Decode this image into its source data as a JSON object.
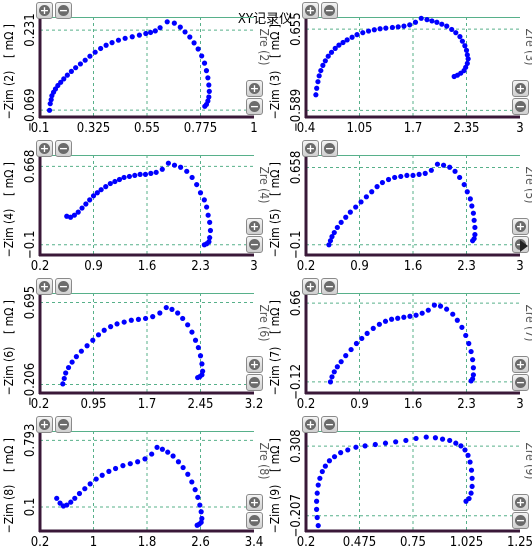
{
  "title": "XY记录仪",
  "colors": {
    "point": "#0000ff",
    "frame": "#3a1838",
    "grid": "#57b08a",
    "axis_text": "#000000"
  },
  "chart_data": [
    {
      "type": "scatter",
      "ylabel": "−Zim (2)",
      "yunit": "[ mΩ ]",
      "xlabel": "Zre (2)",
      "xlim": [
        0.1,
        1
      ],
      "xticks": [
        "0.1",
        "0.325",
        "0.55",
        "0.775",
        "1"
      ],
      "ylim": [
        -0.095,
        0.28
      ],
      "yticks": [
        "−0.069",
        "0.231"
      ],
      "ytick_values": [
        -0.069,
        0.231
      ],
      "points": [
        [
          0.14,
          -0.07
        ],
        [
          0.143,
          -0.045
        ],
        [
          0.147,
          -0.03
        ],
        [
          0.15,
          -0.015
        ],
        [
          0.157,
          -0.002
        ],
        [
          0.165,
          0.01
        ],
        [
          0.175,
          0.023
        ],
        [
          0.187,
          0.035
        ],
        [
          0.2,
          0.048
        ],
        [
          0.215,
          0.062
        ],
        [
          0.232,
          0.076
        ],
        [
          0.25,
          0.09
        ],
        [
          0.27,
          0.104
        ],
        [
          0.29,
          0.118
        ],
        [
          0.31,
          0.133
        ],
        [
          0.332,
          0.148
        ],
        [
          0.355,
          0.162
        ],
        [
          0.378,
          0.174
        ],
        [
          0.403,
          0.184
        ],
        [
          0.43,
          0.193
        ],
        [
          0.458,
          0.2
        ],
        [
          0.488,
          0.206
        ],
        [
          0.518,
          0.212
        ],
        [
          0.545,
          0.218
        ],
        [
          0.565,
          0.222
        ],
        [
          0.585,
          0.228
        ],
        [
          0.605,
          0.24
        ],
        [
          0.635,
          0.262
        ],
        [
          0.665,
          0.257
        ],
        [
          0.69,
          0.242
        ],
        [
          0.71,
          0.224
        ],
        [
          0.73,
          0.205
        ],
        [
          0.748,
          0.183
        ],
        [
          0.765,
          0.16
        ],
        [
          0.78,
          0.134
        ],
        [
          0.792,
          0.107
        ],
        [
          0.8,
          0.079
        ],
        [
          0.806,
          0.052
        ],
        [
          0.81,
          0.025
        ],
        [
          0.812,
          0.001
        ],
        [
          0.81,
          -0.02
        ],
        [
          0.806,
          -0.035
        ],
        [
          0.8,
          -0.048
        ],
        [
          0.793,
          -0.055
        ]
      ]
    },
    {
      "type": "scatter",
      "ylabel": "−Zim (3)",
      "yunit": "[ mΩ ]",
      "xlabel": "Zre (3)",
      "xlim": [
        0.4,
        3
      ],
      "xticks": [
        "0.4",
        "1.05",
        "1.7",
        "2.35",
        "3"
      ],
      "ylim": [
        -0.69,
        0.84
      ],
      "yticks": [
        "−0.589",
        "0.655"
      ],
      "ytick_values": [
        -0.589,
        0.655
      ],
      "points": [
        [
          0.52,
          -0.35
        ],
        [
          0.53,
          -0.25
        ],
        [
          0.545,
          -0.15
        ],
        [
          0.56,
          -0.06
        ],
        [
          0.58,
          0.02
        ],
        [
          0.605,
          0.1
        ],
        [
          0.635,
          0.17
        ],
        [
          0.67,
          0.24
        ],
        [
          0.71,
          0.3
        ],
        [
          0.755,
          0.36
        ],
        [
          0.8,
          0.41
        ],
        [
          0.85,
          0.45
        ],
        [
          0.9,
          0.49
        ],
        [
          0.96,
          0.53
        ],
        [
          1.02,
          0.57
        ],
        [
          1.09,
          0.6
        ],
        [
          1.16,
          0.625
        ],
        [
          1.23,
          0.645
        ],
        [
          1.3,
          0.66
        ],
        [
          1.37,
          0.67
        ],
        [
          1.45,
          0.68
        ],
        [
          1.52,
          0.69
        ],
        [
          1.59,
          0.7
        ],
        [
          1.66,
          0.72
        ],
        [
          1.73,
          0.76
        ],
        [
          1.8,
          0.82
        ],
        [
          1.87,
          0.8
        ],
        [
          1.93,
          0.78
        ],
        [
          1.99,
          0.76
        ],
        [
          2.05,
          0.73
        ],
        [
          2.11,
          0.7
        ],
        [
          2.17,
          0.65
        ],
        [
          2.22,
          0.6
        ],
        [
          2.27,
          0.54
        ],
        [
          2.3,
          0.47
        ],
        [
          2.33,
          0.4
        ],
        [
          2.35,
          0.33
        ],
        [
          2.36,
          0.26
        ],
        [
          2.37,
          0.2
        ],
        [
          2.36,
          0.13
        ],
        [
          2.34,
          0.07
        ],
        [
          2.32,
          0.02
        ],
        [
          2.28,
          -0.02
        ],
        [
          2.24,
          -0.05
        ],
        [
          2.2,
          -0.07
        ]
      ]
    },
    {
      "type": "scatter",
      "ylabel": "−Zim (4)",
      "yunit": "[ mΩ ]",
      "xlabel": "Zre (4)",
      "xlim": [
        0.2,
        3
      ],
      "xticks": [
        "0.2",
        "0.9",
        "1.6",
        "2.3",
        "3"
      ],
      "ylim": [
        -0.2,
        0.78
      ],
      "yticks": [
        "−0.1",
        "0.668"
      ],
      "ytick_values": [
        -0.1,
        0.668
      ],
      "points": [
        [
          0.55,
          0.18
        ],
        [
          0.6,
          0.17
        ],
        [
          0.65,
          0.19
        ],
        [
          0.7,
          0.22
        ],
        [
          0.75,
          0.26
        ],
        [
          0.8,
          0.3
        ],
        [
          0.85,
          0.34
        ],
        [
          0.9,
          0.38
        ],
        [
          0.95,
          0.41
        ],
        [
          1.0,
          0.44
        ],
        [
          1.06,
          0.47
        ],
        [
          1.12,
          0.5
        ],
        [
          1.18,
          0.52
        ],
        [
          1.24,
          0.54
        ],
        [
          1.3,
          0.56
        ],
        [
          1.37,
          0.57
        ],
        [
          1.44,
          0.58
        ],
        [
          1.51,
          0.59
        ],
        [
          1.58,
          0.59
        ],
        [
          1.65,
          0.6
        ],
        [
          1.72,
          0.61
        ],
        [
          1.8,
          0.64
        ],
        [
          1.88,
          0.7
        ],
        [
          1.96,
          0.68
        ],
        [
          2.04,
          0.66
        ],
        [
          2.12,
          0.62
        ],
        [
          2.19,
          0.56
        ],
        [
          2.25,
          0.49
        ],
        [
          2.3,
          0.41
        ],
        [
          2.35,
          0.34
        ],
        [
          2.38,
          0.27
        ],
        [
          2.4,
          0.19
        ],
        [
          2.42,
          0.12
        ],
        [
          2.43,
          0.04
        ],
        [
          2.42,
          -0.03
        ],
        [
          2.41,
          -0.07
        ],
        [
          2.38,
          -0.09
        ],
        [
          2.35,
          -0.1
        ]
      ]
    },
    {
      "type": "scatter",
      "ylabel": "−Zim (5)",
      "yunit": "[ mΩ ]",
      "xlabel": "Zre (5)",
      "xlim": [
        0.2,
        3
      ],
      "xticks": [
        "0.2",
        "0.9",
        "1.6",
        "2.3",
        "3"
      ],
      "ylim": [
        -0.2,
        0.78
      ],
      "yticks": [
        "−0.1",
        "0.658"
      ],
      "ytick_values": [
        -0.1,
        0.658
      ],
      "points": [
        [
          0.5,
          -0.1
        ],
        [
          0.52,
          -0.06
        ],
        [
          0.54,
          -0.02
        ],
        [
          0.57,
          0.02
        ],
        [
          0.61,
          0.07
        ],
        [
          0.66,
          0.12
        ],
        [
          0.72,
          0.17
        ],
        [
          0.78,
          0.22
        ],
        [
          0.85,
          0.27
        ],
        [
          0.92,
          0.32
        ],
        [
          0.99,
          0.37
        ],
        [
          1.06,
          0.42
        ],
        [
          1.13,
          0.47
        ],
        [
          1.2,
          0.51
        ],
        [
          1.28,
          0.54
        ],
        [
          1.36,
          0.56
        ],
        [
          1.44,
          0.57
        ],
        [
          1.52,
          0.58
        ],
        [
          1.6,
          0.58
        ],
        [
          1.68,
          0.59
        ],
        [
          1.76,
          0.6
        ],
        [
          1.84,
          0.63
        ],
        [
          1.92,
          0.69
        ],
        [
          2.0,
          0.68
        ],
        [
          2.08,
          0.66
        ],
        [
          2.15,
          0.62
        ],
        [
          2.21,
          0.56
        ],
        [
          2.27,
          0.49
        ],
        [
          2.31,
          0.42
        ],
        [
          2.35,
          0.35
        ],
        [
          2.37,
          0.28
        ],
        [
          2.39,
          0.21
        ],
        [
          2.4,
          0.14
        ],
        [
          2.41,
          0.07
        ],
        [
          2.41,
          0.0
        ],
        [
          2.4,
          -0.04
        ],
        [
          2.38,
          -0.06
        ]
      ]
    },
    {
      "type": "scatter",
      "ylabel": "−Zim (6)",
      "yunit": "[ mΩ ]",
      "xlabel": "Zre (6)",
      "xlim": [
        0.2,
        3.2
      ],
      "xticks": [
        "0.2",
        "0.95",
        "1.7",
        "2.45",
        "3.2"
      ],
      "ylim": [
        -0.3,
        0.8
      ],
      "yticks": [
        "−0.206",
        "0.695"
      ],
      "ytick_values": [
        -0.206,
        0.695
      ],
      "points": [
        [
          0.52,
          -0.2
        ],
        [
          0.54,
          -0.14
        ],
        [
          0.56,
          -0.08
        ],
        [
          0.6,
          -0.02
        ],
        [
          0.65,
          0.04
        ],
        [
          0.71,
          0.1
        ],
        [
          0.78,
          0.16
        ],
        [
          0.86,
          0.22
        ],
        [
          0.94,
          0.28
        ],
        [
          1.02,
          0.34
        ],
        [
          1.1,
          0.39
        ],
        [
          1.19,
          0.43
        ],
        [
          1.28,
          0.46
        ],
        [
          1.38,
          0.48
        ],
        [
          1.48,
          0.5
        ],
        [
          1.58,
          0.51
        ],
        [
          1.68,
          0.52
        ],
        [
          1.78,
          0.54
        ],
        [
          1.88,
          0.58
        ],
        [
          1.97,
          0.64
        ],
        [
          2.05,
          0.62
        ],
        [
          2.13,
          0.58
        ],
        [
          2.2,
          0.52
        ],
        [
          2.27,
          0.45
        ],
        [
          2.33,
          0.37
        ],
        [
          2.38,
          0.28
        ],
        [
          2.42,
          0.2
        ],
        [
          2.45,
          0.11
        ],
        [
          2.47,
          0.02
        ],
        [
          2.48,
          -0.06
        ],
        [
          2.47,
          -0.1
        ],
        [
          2.44,
          -0.12
        ],
        [
          2.41,
          -0.13
        ]
      ]
    },
    {
      "type": "scatter",
      "ylabel": "−Zim (7)",
      "yunit": "[ mΩ ]",
      "xlabel": "Zre (7)",
      "xlim": [
        0.2,
        3
      ],
      "xticks": [
        "0.2",
        "0.9",
        "1.6",
        "2.3",
        "3"
      ],
      "ylim": [
        -0.23,
        0.76
      ],
      "yticks": [
        "−0.12",
        "0.66"
      ],
      "ytick_values": [
        -0.12,
        0.66
      ],
      "points": [
        [
          0.52,
          -0.12
        ],
        [
          0.54,
          -0.07
        ],
        [
          0.57,
          -0.02
        ],
        [
          0.61,
          0.03
        ],
        [
          0.66,
          0.08
        ],
        [
          0.72,
          0.14
        ],
        [
          0.79,
          0.2
        ],
        [
          0.86,
          0.26
        ],
        [
          0.93,
          0.31
        ],
        [
          1.0,
          0.36
        ],
        [
          1.08,
          0.41
        ],
        [
          1.16,
          0.45
        ],
        [
          1.24,
          0.48
        ],
        [
          1.32,
          0.5
        ],
        [
          1.4,
          0.51
        ],
        [
          1.48,
          0.52
        ],
        [
          1.56,
          0.53
        ],
        [
          1.64,
          0.54
        ],
        [
          1.72,
          0.56
        ],
        [
          1.8,
          0.59
        ],
        [
          1.88,
          0.64
        ],
        [
          1.96,
          0.63
        ],
        [
          2.04,
          0.6
        ],
        [
          2.12,
          0.55
        ],
        [
          2.18,
          0.49
        ],
        [
          2.24,
          0.42
        ],
        [
          2.29,
          0.34
        ],
        [
          2.33,
          0.26
        ],
        [
          2.36,
          0.18
        ],
        [
          2.38,
          0.1
        ],
        [
          2.39,
          0.02
        ],
        [
          2.39,
          -0.05
        ],
        [
          2.38,
          -0.09
        ],
        [
          2.36,
          -0.11
        ]
      ]
    },
    {
      "type": "scatter",
      "ylabel": "−Zim (8)",
      "yunit": "[ mΩ ]",
      "xlabel": "Zre (8)",
      "xlim": [
        0.2,
        3.4
      ],
      "xticks": [
        "0.2",
        "1",
        "1.8",
        "2.6",
        "3.4"
      ],
      "ylim": [
        -0.15,
        0.89
      ],
      "yticks": [
        "0.1",
        "0.793"
      ],
      "ytick_values": [
        0.1,
        0.793
      ],
      "points": [
        [
          0.45,
          0.19
        ],
        [
          0.5,
          0.14
        ],
        [
          0.55,
          0.11
        ],
        [
          0.6,
          0.12
        ],
        [
          0.66,
          0.15
        ],
        [
          0.72,
          0.19
        ],
        [
          0.79,
          0.24
        ],
        [
          0.87,
          0.29
        ],
        [
          0.95,
          0.34
        ],
        [
          1.04,
          0.39
        ],
        [
          1.13,
          0.43
        ],
        [
          1.23,
          0.47
        ],
        [
          1.33,
          0.5
        ],
        [
          1.44,
          0.53
        ],
        [
          1.55,
          0.55
        ],
        [
          1.66,
          0.57
        ],
        [
          1.77,
          0.6
        ],
        [
          1.87,
          0.65
        ],
        [
          1.95,
          0.72
        ],
        [
          2.03,
          0.7
        ],
        [
          2.11,
          0.67
        ],
        [
          2.19,
          0.63
        ],
        [
          2.27,
          0.57
        ],
        [
          2.34,
          0.51
        ],
        [
          2.41,
          0.44
        ],
        [
          2.47,
          0.36
        ],
        [
          2.52,
          0.28
        ],
        [
          2.56,
          0.2
        ],
        [
          2.59,
          0.12
        ],
        [
          2.61,
          0.05
        ],
        [
          2.62,
          -0.02
        ],
        [
          2.61,
          -0.06
        ],
        [
          2.58,
          -0.08
        ],
        [
          2.55,
          -0.09
        ]
      ]
    },
    {
      "type": "scatter",
      "ylabel": "−Zim (9)",
      "yunit": "[ mΩ ]",
      "xlabel": "Zre (9)",
      "xlim": [
        0.2,
        1.25
      ],
      "xticks": [
        "0.2",
        "0.475",
        "0.75",
        "1.025",
        "1.25"
      ],
      "ylim": [
        -0.32,
        0.42
      ],
      "yticks": [
        "−0.207",
        "0.308"
      ],
      "ytick_values": [
        -0.207,
        0.308
      ],
      "points": [
        [
          0.26,
          -0.28
        ],
        [
          0.255,
          -0.22
        ],
        [
          0.252,
          -0.16
        ],
        [
          0.252,
          -0.1
        ],
        [
          0.255,
          -0.04
        ],
        [
          0.26,
          0.02
        ],
        [
          0.268,
          0.07
        ],
        [
          0.28,
          0.12
        ],
        [
          0.295,
          0.16
        ],
        [
          0.315,
          0.2
        ],
        [
          0.34,
          0.23
        ],
        [
          0.37,
          0.26
        ],
        [
          0.405,
          0.28
        ],
        [
          0.445,
          0.3
        ],
        [
          0.49,
          0.31
        ],
        [
          0.54,
          0.32
        ],
        [
          0.59,
          0.33
        ],
        [
          0.64,
          0.34
        ],
        [
          0.69,
          0.35
        ],
        [
          0.74,
          0.365
        ],
        [
          0.79,
          0.375
        ],
        [
          0.835,
          0.37
        ],
        [
          0.87,
          0.36
        ],
        [
          0.905,
          0.35
        ],
        [
          0.935,
          0.33
        ],
        [
          0.96,
          0.31
        ],
        [
          0.98,
          0.28
        ],
        [
          0.995,
          0.24
        ],
        [
          1.005,
          0.19
        ],
        [
          1.012,
          0.13
        ],
        [
          1.015,
          0.07
        ],
        [
          1.015,
          0.01
        ],
        [
          1.01,
          -0.04
        ],
        [
          1.0,
          -0.08
        ],
        [
          0.985,
          -0.1
        ]
      ]
    }
  ]
}
